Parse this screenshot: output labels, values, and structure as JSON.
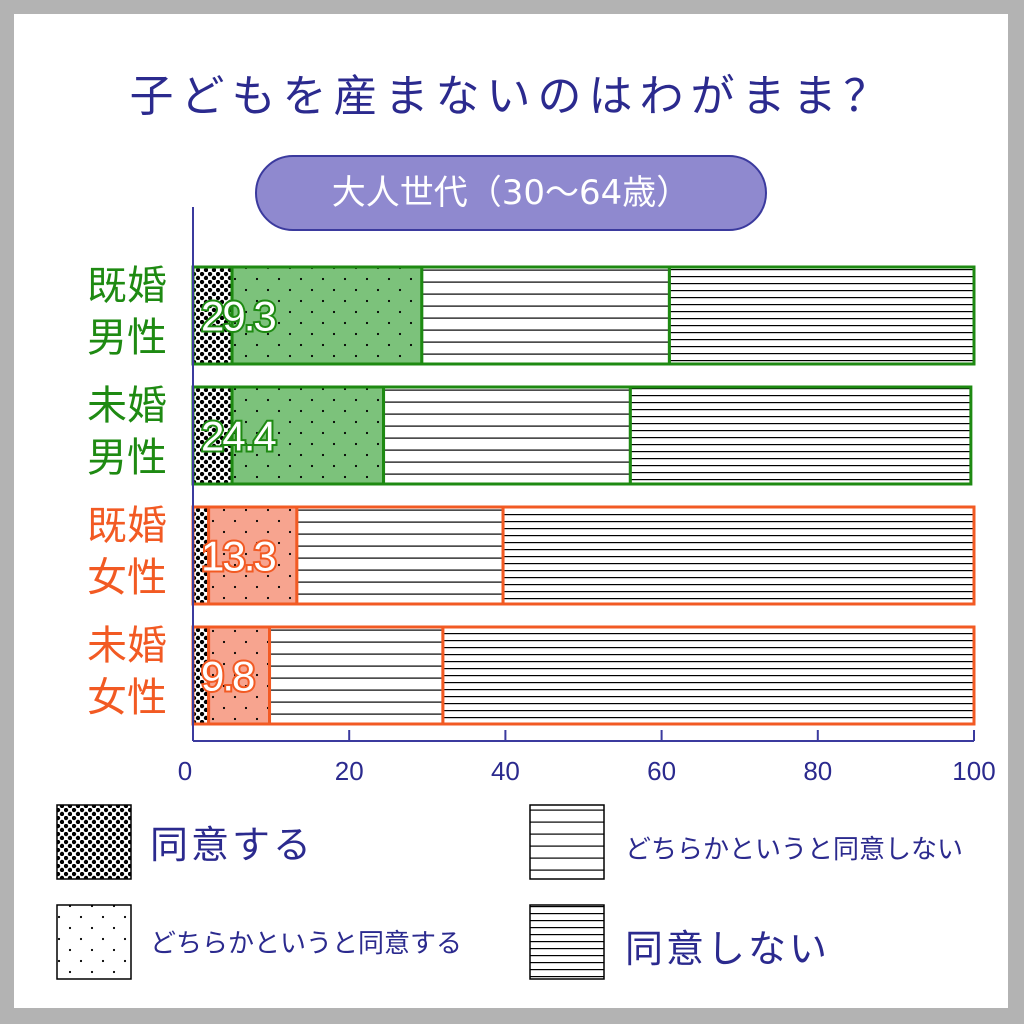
{
  "title": "子どもを産まないのはわがまま？",
  "subtitle": "大人世代（30〜64歳）",
  "colors": {
    "text_primary": "#2b2a8e",
    "axis": "#3b3a9e",
    "green": "#1e8a12",
    "green_fill": "#7cc27b",
    "orange": "#f25a23",
    "orange_fill": "#f7a48f",
    "pill": "#8f89cf"
  },
  "chart_data": {
    "type": "bar",
    "orientation": "horizontal",
    "stacked": true,
    "categories": [
      "既婚\n男性",
      "未婚\n男性",
      "既婚\n女性",
      "未婚\n女性"
    ],
    "series": [
      {
        "name": "同意する",
        "values": [
          5,
          5,
          2,
          2
        ]
      },
      {
        "name": "どちらかというと同意する",
        "values": [
          24.3,
          19.4,
          11.3,
          7.8
        ]
      },
      {
        "name": "どちらかというと同意しない",
        "values": [
          31.7,
          31.6,
          26.4,
          22.2
        ]
      },
      {
        "name": "同意しない",
        "values": [
          39,
          43.6,
          60.3,
          68
        ]
      }
    ],
    "data_labels": [
      "29.3",
      "24.4",
      "13.3",
      "9.8"
    ],
    "xlim": [
      0,
      100
    ],
    "xticks": [
      "0",
      "20",
      "40",
      "60",
      "80",
      "100"
    ],
    "grid": false,
    "legend_position": "bottom"
  }
}
